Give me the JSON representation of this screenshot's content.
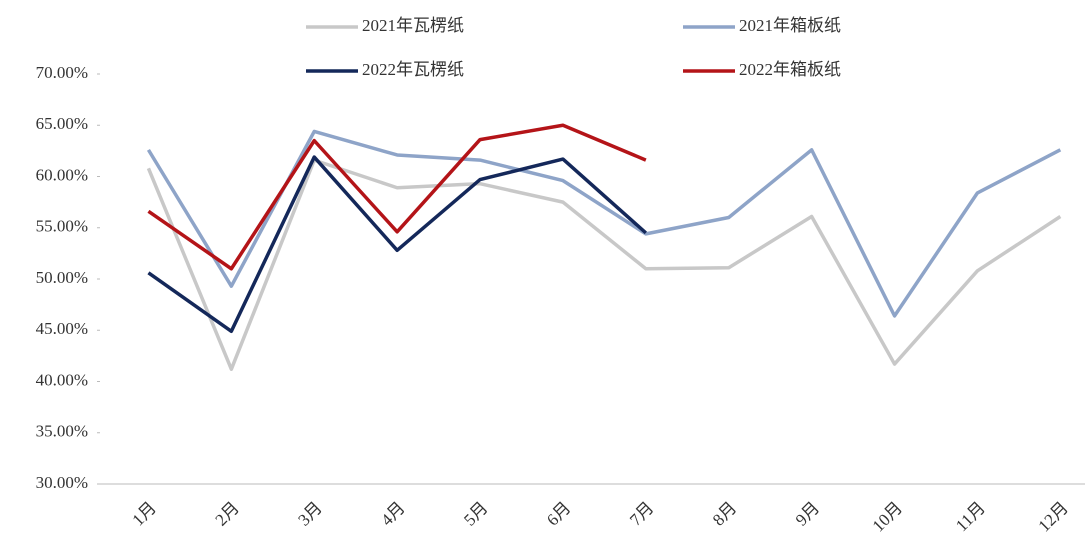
{
  "chart_data": {
    "type": "line",
    "categories": [
      "1月",
      "2月",
      "3月",
      "4月",
      "5月",
      "6月",
      "7月",
      "8月",
      "9月",
      "10月",
      "11月",
      "12月"
    ],
    "series": [
      {
        "name": "2021年瓦楞纸",
        "color": "#c8c8c8",
        "values": [
          60.8,
          41.2,
          61.6,
          58.9,
          59.3,
          57.5,
          51.0,
          51.1,
          56.1,
          41.7,
          50.8,
          56.1
        ]
      },
      {
        "name": "2021年箱板纸",
        "color": "#8ea4c8",
        "values": [
          62.6,
          49.3,
          64.4,
          62.1,
          61.6,
          59.6,
          54.4,
          56.0,
          62.6,
          46.4,
          58.4,
          62.6
        ]
      },
      {
        "name": "2022年瓦楞纸",
        "color": "#14285a",
        "values": [
          50.6,
          44.9,
          61.9,
          52.8,
          59.7,
          61.7,
          54.5,
          null,
          null,
          null,
          null,
          null
        ]
      },
      {
        "name": "2022年箱板纸",
        "color": "#b41418",
        "values": [
          56.6,
          51.0,
          63.5,
          54.6,
          63.6,
          65.0,
          61.6,
          null,
          null,
          null,
          null,
          null
        ]
      }
    ],
    "ylim": [
      30,
      70
    ],
    "yticks": [
      {
        "value": 30,
        "label": "30.00%"
      },
      {
        "value": 35,
        "label": "35.00%"
      },
      {
        "value": 40,
        "label": "40.00%"
      },
      {
        "value": 45,
        "label": "45.00%"
      },
      {
        "value": 50,
        "label": "50.00%"
      },
      {
        "value": 55,
        "label": "55.00%"
      },
      {
        "value": 60,
        "label": "60.00%"
      },
      {
        "value": 65,
        "label": "65.00%"
      },
      {
        "value": 70,
        "label": "70.00%"
      }
    ],
    "grid": false
  }
}
